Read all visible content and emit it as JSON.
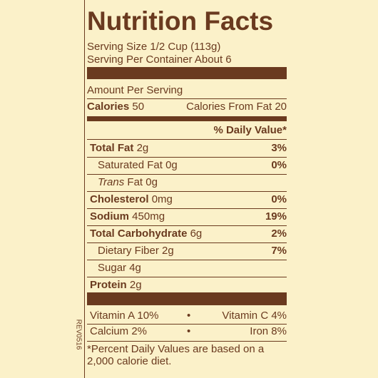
{
  "title": "Nutrition Facts",
  "serving_size": "Serving Size 1/2 Cup (113g)",
  "servings": "Serving Per Container About 6",
  "amount_per_serving": "Amount Per Serving",
  "calories": {
    "label": "Calories",
    "value": "50"
  },
  "calories_from_fat": "Calories From Fat 20",
  "daily_value_header": "% Daily Value*",
  "nutrients": [
    {
      "name": "Total Fat",
      "amount": "2g",
      "dv": "3%",
      "bold": true,
      "indent": false
    },
    {
      "name": "Saturated Fat",
      "amount": "0g",
      "dv": "0%",
      "bold": false,
      "indent": true
    },
    {
      "prefix": "Trans",
      "name": "Fat",
      "amount": "0g",
      "bold": false,
      "indent": true
    },
    {
      "name": "Cholesterol",
      "amount": "0mg",
      "dv": "0%",
      "bold": true,
      "indent": false
    },
    {
      "name": "Sodium",
      "amount": "450mg",
      "dv": "19%",
      "bold": true,
      "indent": false
    },
    {
      "name": "Total Carbohydrate",
      "amount": "6g",
      "dv": "2%",
      "bold": true,
      "indent": false
    },
    {
      "name": "Dietary Fiber",
      "amount": "2g",
      "dv": "7%",
      "bold": false,
      "indent": true
    },
    {
      "name": "Sugar",
      "amount": "4g",
      "bold": false,
      "indent": true
    },
    {
      "name": "Protein",
      "amount": "2g",
      "bold": true,
      "indent": false
    }
  ],
  "vitamins": [
    [
      "Vitamin A 10%",
      "Vitamin C 4%"
    ],
    [
      "Calcium 2%",
      "Iron 8%"
    ]
  ],
  "footnote": [
    "*Percent Daily Values are based on a",
    "2,000 calorie diet."
  ],
  "revision": "REV0516"
}
